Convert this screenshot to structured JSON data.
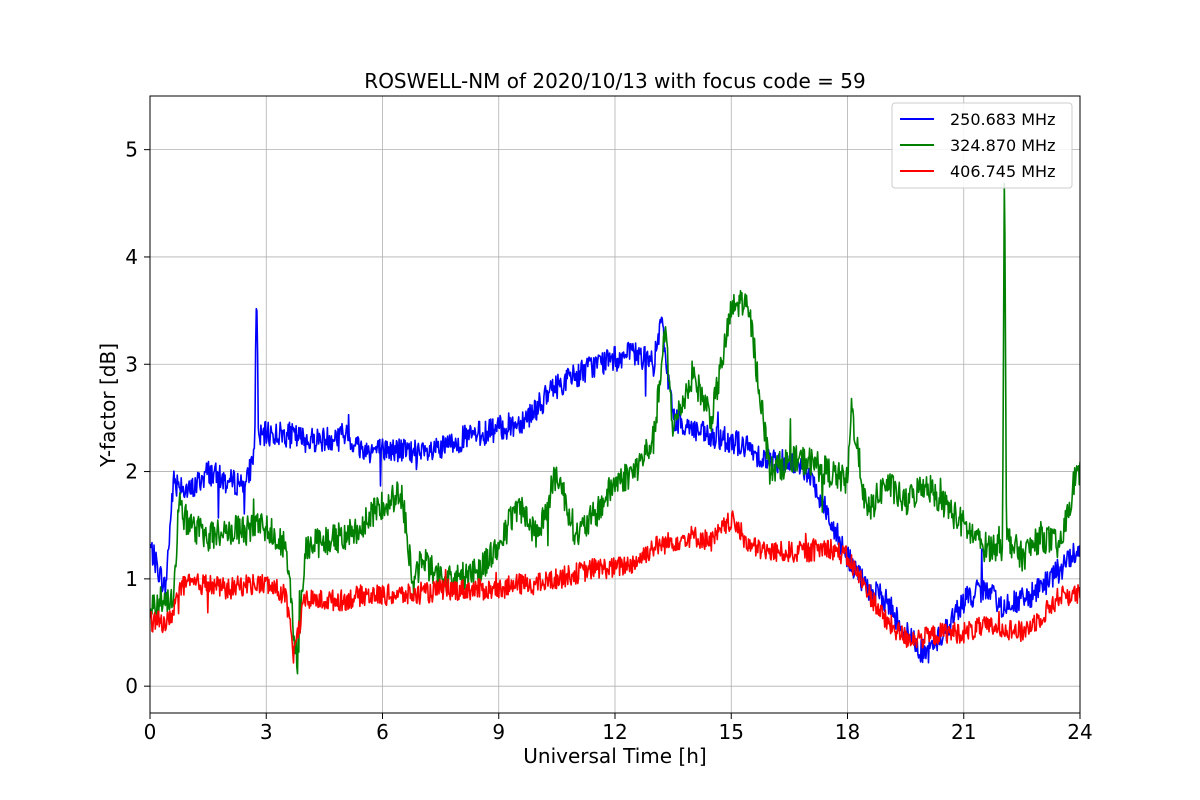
{
  "chart_data": {
    "type": "line",
    "title": "ROSWELL-NM of 2020/10/13 with focus code = 59",
    "xlabel": "Universal Time [h]",
    "ylabel": "Y-factor [dB]",
    "xlim": [
      0,
      24
    ],
    "ylim": [
      -0.25,
      5.5
    ],
    "xticks": [
      0,
      3,
      6,
      9,
      12,
      15,
      18,
      21,
      24
    ],
    "yticks": [
      0,
      1,
      2,
      3,
      4,
      5
    ],
    "grid": true,
    "legend_position": "upper-right",
    "series": [
      {
        "name": "250.683 MHz",
        "color": "#0000ff",
        "noise": 0.12,
        "x": [
          0,
          0.2,
          0.4,
          0.6,
          0.8,
          1,
          1.5,
          2,
          2.5,
          2.7,
          2.75,
          2.8,
          3,
          3.5,
          4,
          4.5,
          5,
          5.5,
          6,
          6.5,
          7,
          7.5,
          8,
          8.5,
          9,
          9.5,
          10,
          10.5,
          11,
          11.5,
          12,
          12.5,
          13,
          13.2,
          13.5,
          14,
          14.5,
          15,
          15.5,
          16,
          16.5,
          17,
          17.5,
          18,
          18.5,
          19,
          19.5,
          20,
          20.5,
          21,
          21.5,
          22,
          22.5,
          23,
          23.5,
          24
        ],
        "y": [
          1.3,
          1.1,
          0.9,
          1.9,
          1.9,
          1.8,
          2.0,
          1.9,
          1.9,
          2.2,
          3.85,
          2.3,
          2.35,
          2.35,
          2.3,
          2.3,
          2.35,
          2.2,
          2.2,
          2.2,
          2.15,
          2.2,
          2.3,
          2.35,
          2.4,
          2.45,
          2.6,
          2.8,
          2.9,
          3.0,
          3.05,
          3.1,
          3.0,
          3.4,
          2.5,
          2.4,
          2.3,
          2.3,
          2.2,
          2.1,
          2.1,
          2.0,
          1.6,
          1.2,
          0.9,
          0.8,
          0.5,
          0.3,
          0.5,
          0.8,
          0.9,
          0.75,
          0.8,
          0.9,
          1.1,
          1.3
        ]
      },
      {
        "name": "324.870 MHz",
        "color": "#008000",
        "noise": 0.14,
        "x": [
          0,
          0.3,
          0.6,
          0.75,
          1,
          1.5,
          2,
          2.5,
          3,
          3.5,
          3.8,
          4,
          4.5,
          5,
          5.5,
          6,
          6.5,
          6.8,
          7,
          7.5,
          8,
          8.5,
          9,
          9.5,
          10,
          10.5,
          11,
          11.5,
          12,
          12.5,
          13,
          13.3,
          13.5,
          14,
          14.5,
          15,
          15.3,
          15.5,
          16,
          16.5,
          17,
          17.5,
          18,
          18.1,
          18.5,
          19,
          19.5,
          20,
          20.5,
          21,
          21.5,
          22,
          22.05,
          22.1,
          22.5,
          23,
          23.5,
          23.9,
          24
        ],
        "y": [
          0.75,
          0.8,
          0.85,
          1.7,
          1.5,
          1.4,
          1.45,
          1.45,
          1.5,
          1.3,
          0.2,
          1.3,
          1.35,
          1.4,
          1.5,
          1.7,
          1.8,
          0.9,
          1.2,
          1.0,
          1.0,
          1.1,
          1.3,
          1.7,
          1.4,
          2.0,
          1.4,
          1.6,
          1.9,
          2.0,
          2.3,
          3.3,
          2.4,
          2.9,
          2.5,
          3.5,
          3.6,
          3.4,
          2.0,
          2.1,
          2.1,
          2.0,
          1.9,
          2.6,
          1.6,
          1.9,
          1.7,
          1.9,
          1.7,
          1.5,
          1.3,
          1.3,
          5.1,
          1.4,
          1.2,
          1.4,
          1.3,
          2.0,
          1.95
        ]
      },
      {
        "name": "406.745 MHz",
        "color": "#ff0000",
        "noise": 0.1,
        "x": [
          0,
          0.5,
          0.75,
          1,
          1.5,
          2,
          2.5,
          3,
          3.5,
          3.7,
          4,
          4.5,
          5,
          5.5,
          6,
          6.5,
          7,
          7.5,
          8,
          8.5,
          9,
          9.5,
          10,
          10.5,
          11,
          11.5,
          12,
          12.5,
          13,
          13.5,
          14,
          14.5,
          15,
          15.5,
          16,
          16.5,
          17,
          17.5,
          18,
          18.5,
          19,
          19.5,
          20,
          20.5,
          21,
          21.5,
          22,
          22.5,
          23,
          23.5,
          24
        ],
        "y": [
          0.6,
          0.6,
          0.9,
          0.95,
          0.95,
          0.9,
          0.95,
          0.95,
          0.85,
          0.3,
          0.8,
          0.8,
          0.8,
          0.85,
          0.85,
          0.85,
          0.85,
          0.9,
          0.9,
          0.9,
          0.9,
          0.95,
          0.95,
          1.0,
          1.05,
          1.1,
          1.1,
          1.15,
          1.3,
          1.35,
          1.4,
          1.35,
          1.55,
          1.3,
          1.25,
          1.25,
          1.25,
          1.3,
          1.2,
          0.9,
          0.6,
          0.45,
          0.45,
          0.5,
          0.5,
          0.55,
          0.55,
          0.5,
          0.65,
          0.85,
          0.85
        ]
      }
    ]
  }
}
